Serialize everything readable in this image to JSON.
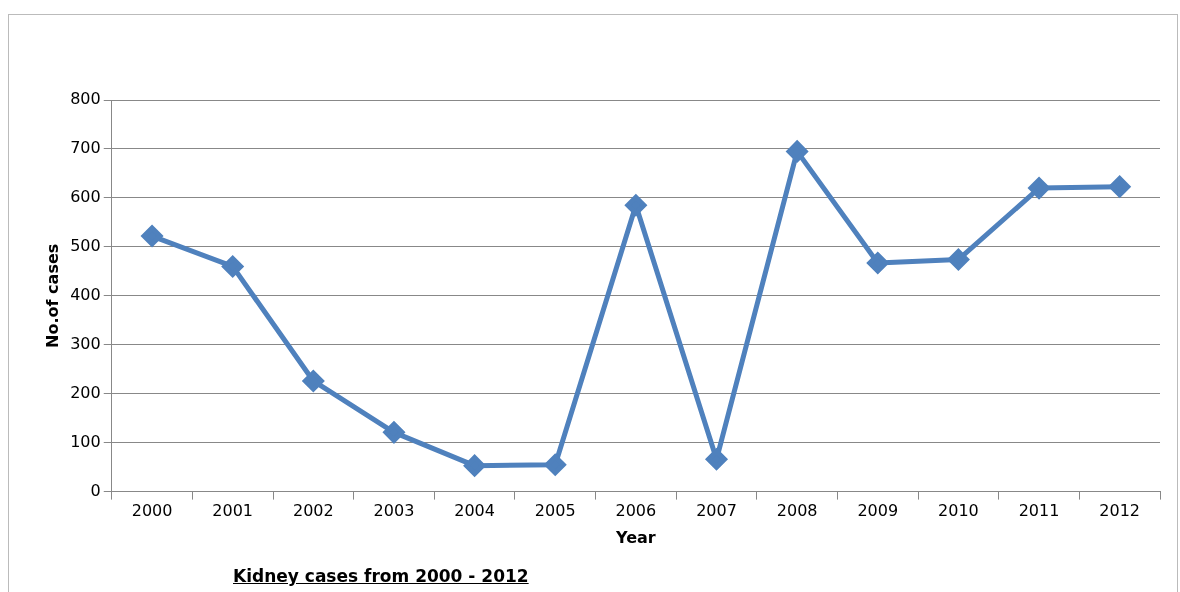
{
  "chart_data": {
    "type": "line",
    "title": "Kidney cases from 2000 - 2012",
    "xlabel": "Year",
    "ylabel": "No.of cases",
    "categories": [
      "2000",
      "2001",
      "2002",
      "2003",
      "2004",
      "2005",
      "2006",
      "2007",
      "2008",
      "2009",
      "2010",
      "2011",
      "2012"
    ],
    "series": [
      {
        "color": "#4f81bd",
        "values": [
          522,
          460,
          226,
          121,
          53,
          55,
          585,
          66,
          695,
          467,
          474,
          620,
          623
        ]
      }
    ],
    "ylim": [
      0,
      800
    ],
    "yticks": [
      0,
      100,
      200,
      300,
      400,
      500,
      600,
      700,
      800
    ],
    "grid": "y",
    "legend": false,
    "marker": "diamond",
    "line_style": "solid"
  }
}
